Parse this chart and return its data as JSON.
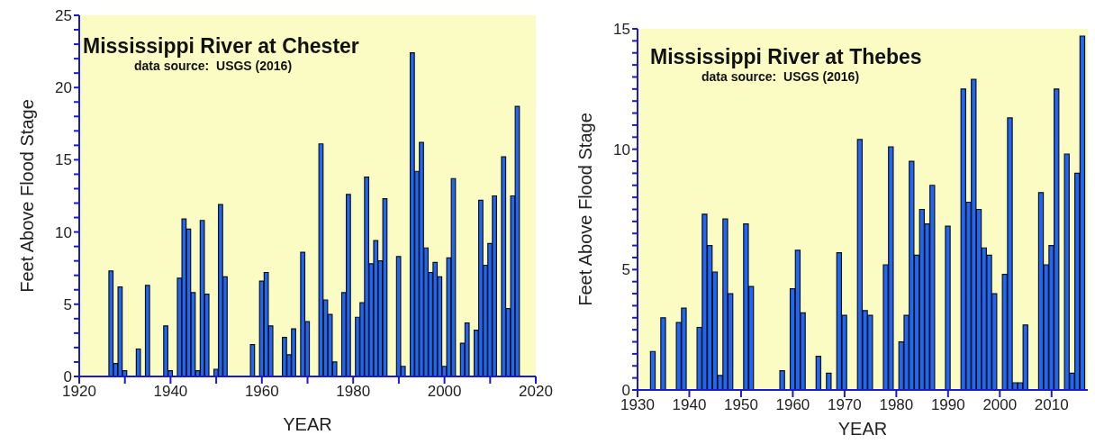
{
  "chart_data": [
    {
      "type": "bar",
      "title": "Mississippi River at Chester",
      "subtitle": "data source:  USGS (2016)",
      "xlabel": "YEAR",
      "ylabel": "Feet Above Flood Stage",
      "color": "#2067f8",
      "x": [
        1927,
        1928,
        1929,
        1930,
        1933,
        1935,
        1939,
        1940,
        1942,
        1943,
        1944,
        1945,
        1946,
        1947,
        1948,
        1950,
        1951,
        1952,
        1958,
        1960,
        1961,
        1962,
        1965,
        1966,
        1967,
        1969,
        1970,
        1973,
        1974,
        1975,
        1976,
        1978,
        1979,
        1981,
        1982,
        1983,
        1984,
        1985,
        1986,
        1987,
        1990,
        1991,
        1993,
        1994,
        1995,
        1996,
        1997,
        1998,
        1999,
        2000,
        2001,
        2002,
        2004,
        2005,
        2007,
        2008,
        2009,
        2010,
        2011,
        2013,
        2014,
        2015,
        2016
      ],
      "values": [
        7.3,
        0.9,
        6.2,
        0.4,
        1.9,
        6.3,
        3.5,
        0.4,
        6.8,
        10.9,
        10.2,
        5.8,
        0.4,
        10.8,
        5.7,
        0.5,
        11.9,
        6.9,
        2.2,
        6.6,
        7.2,
        3.5,
        2.7,
        1.5,
        3.3,
        8.6,
        3.8,
        16.1,
        5.3,
        4.3,
        1.0,
        5.8,
        12.6,
        4.1,
        5.1,
        13.8,
        7.8,
        9.4,
        8.0,
        12.3,
        8.3,
        0.7,
        22.4,
        14.2,
        16.2,
        8.9,
        7.2,
        7.9,
        6.9,
        0.7,
        8.2,
        13.7,
        2.3,
        3.7,
        3.2,
        12.2,
        7.7,
        9.2,
        12.5,
        15.2,
        4.7,
        12.5,
        18.7
      ],
      "xlim": [
        1920,
        2020
      ],
      "xticks": [
        1920,
        {
          "value": 1930,
          "label": null
        },
        1940,
        {
          "value": 1950,
          "label": null
        },
        1960,
        {
          "value": 1970,
          "label": null
        },
        1980,
        {
          "value": 1990,
          "label": null
        },
        2000,
        {
          "value": 2010,
          "label": null
        },
        2020
      ],
      "ylim": [
        0,
        25
      ],
      "yticks": [
        0,
        {
          "value": 1,
          "label": null
        },
        {
          "value": 2,
          "label": null
        },
        {
          "value": 3,
          "label": null
        },
        {
          "value": 4,
          "label": null
        },
        5,
        {
          "value": 6,
          "label": null
        },
        {
          "value": 7,
          "label": null
        },
        {
          "value": 8,
          "label": null
        },
        {
          "value": 9,
          "label": null
        },
        10,
        {
          "value": 11,
          "label": null
        },
        {
          "value": 12,
          "label": null
        },
        {
          "value": 13,
          "label": null
        },
        {
          "value": 14,
          "label": null
        },
        15,
        {
          "value": 16,
          "label": null
        },
        {
          "value": 17,
          "label": null
        },
        {
          "value": 18,
          "label": null
        },
        {
          "value": 19,
          "label": null
        },
        20,
        {
          "value": 21,
          "label": null
        },
        {
          "value": 22,
          "label": null
        },
        {
          "value": 23,
          "label": null
        },
        {
          "value": 24,
          "label": null
        },
        25
      ],
      "grid": false,
      "legend": false
    },
    {
      "type": "bar",
      "title": "Mississippi River at Thebes",
      "subtitle": "data source:  USGS (2016)",
      "xlabel": "YEAR",
      "ylabel": "Feet Above Flood Stage",
      "color": "#2067f8",
      "x": [
        1933,
        1935,
        1938,
        1939,
        1942,
        1943,
        1944,
        1945,
        1946,
        1947,
        1948,
        1951,
        1952,
        1958,
        1960,
        1961,
        1962,
        1965,
        1967,
        1969,
        1970,
        1973,
        1974,
        1975,
        1978,
        1979,
        1981,
        1982,
        1983,
        1984,
        1985,
        1986,
        1987,
        1990,
        1993,
        1994,
        1995,
        1996,
        1997,
        1998,
        1999,
        2001,
        2002,
        2003,
        2004,
        2005,
        2008,
        2009,
        2010,
        2011,
        2013,
        2014,
        2015,
        2016
      ],
      "values": [
        1.6,
        3.0,
        2.8,
        3.4,
        2.6,
        7.3,
        6.0,
        4.9,
        0.6,
        7.1,
        4.0,
        6.9,
        4.3,
        0.8,
        4.2,
        5.8,
        3.2,
        1.4,
        0.7,
        5.7,
        3.1,
        10.4,
        3.3,
        3.1,
        5.2,
        10.1,
        2.0,
        3.1,
        9.5,
        5.6,
        7.5,
        6.9,
        8.5,
        6.8,
        12.5,
        7.8,
        12.9,
        7.5,
        5.9,
        5.6,
        4.0,
        4.8,
        11.3,
        0.3,
        0.3,
        2.7,
        8.2,
        5.2,
        6.0,
        12.5,
        9.8,
        0.7,
        9.0,
        14.7
      ],
      "xlim": [
        1930,
        2017
      ],
      "xticks": [
        1930,
        1940,
        1950,
        1960,
        1970,
        1980,
        1990,
        2000,
        2010
      ],
      "ylim": [
        0,
        15
      ],
      "yticks": [
        0,
        {
          "value": 0.5,
          "label": null
        },
        {
          "value": 1,
          "label": null
        },
        {
          "value": 1.5,
          "label": null
        },
        {
          "value": 2,
          "label": null
        },
        {
          "value": 2.5,
          "label": null
        },
        {
          "value": 3,
          "label": null
        },
        {
          "value": 3.5,
          "label": null
        },
        {
          "value": 4,
          "label": null
        },
        {
          "value": 4.5,
          "label": null
        },
        5,
        {
          "value": 5.5,
          "label": null
        },
        {
          "value": 6,
          "label": null
        },
        {
          "value": 6.5,
          "label": null
        },
        {
          "value": 7,
          "label": null
        },
        {
          "value": 7.5,
          "label": null
        },
        {
          "value": 8,
          "label": null
        },
        {
          "value": 8.5,
          "label": null
        },
        {
          "value": 9,
          "label": null
        },
        {
          "value": 9.5,
          "label": null
        },
        10,
        {
          "value": 10.5,
          "label": null
        },
        {
          "value": 11,
          "label": null
        },
        {
          "value": 11.5,
          "label": null
        },
        {
          "value": 12,
          "label": null
        },
        {
          "value": 12.5,
          "label": null
        },
        {
          "value": 13,
          "label": null
        },
        {
          "value": 13.5,
          "label": null
        },
        {
          "value": 14,
          "label": null
        },
        {
          "value": 14.5,
          "label": null
        },
        15
      ],
      "grid": false,
      "legend": false
    }
  ]
}
